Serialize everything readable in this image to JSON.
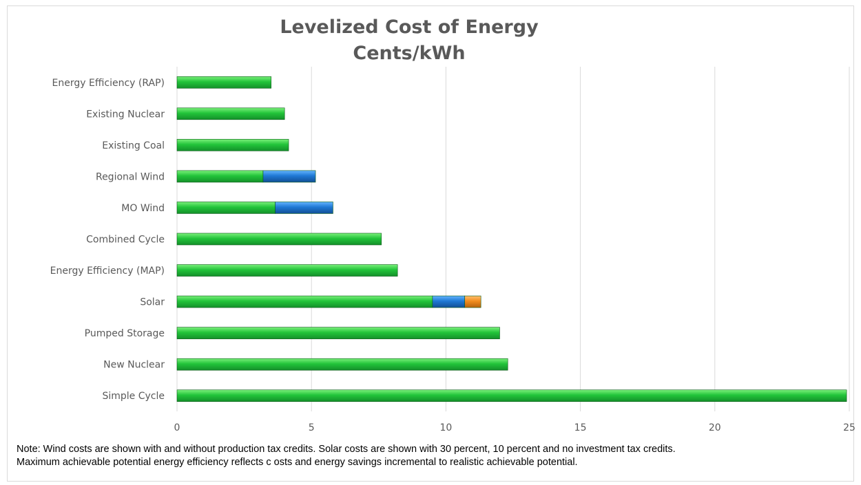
{
  "chart_data": {
    "type": "bar",
    "orientation": "horizontal",
    "stacked": true,
    "title": "Levelized Cost of Energy",
    "subtitle": "Cents/kWh",
    "xlabel": "",
    "ylabel": "",
    "xlim": [
      0,
      25
    ],
    "xticks": [
      "0",
      "5",
      "10",
      "15",
      "20",
      "25"
    ],
    "grid": true,
    "legend": "none",
    "categories": [
      "Energy Efficiency (RAP)",
      "Existing Nuclear",
      "Existing Coal",
      "Regional Wind",
      "MO Wind",
      "Combined Cycle",
      "Energy Efficiency (MAP)",
      "Solar",
      "Pumped Storage",
      "New Nuclear",
      "Simple Cycle"
    ],
    "series": [
      {
        "color": "#2ecc40",
        "values": [
          3.5,
          4.0,
          4.15,
          3.2,
          3.65,
          7.6,
          8.2,
          9.5,
          12.0,
          12.3,
          24.9
        ]
      },
      {
        "color": "#1f78d4",
        "values": [
          0,
          0,
          0,
          1.95,
          2.15,
          0,
          0,
          1.2,
          0,
          0,
          0
        ]
      },
      {
        "color": "#f28c1e",
        "values": [
          0,
          0,
          0,
          0,
          0,
          0,
          0,
          0.6,
          0,
          0,
          0
        ]
      }
    ]
  },
  "note": {
    "line1": "Note: Wind costs are shown with and without production tax credits. Solar costs  are shown with 30 percent, 10 percent and no investment tax credits.",
    "line2": "Maximum achievable potential energy efficiency reflects c osts and energy savings incremental to realistic achievable potential."
  }
}
